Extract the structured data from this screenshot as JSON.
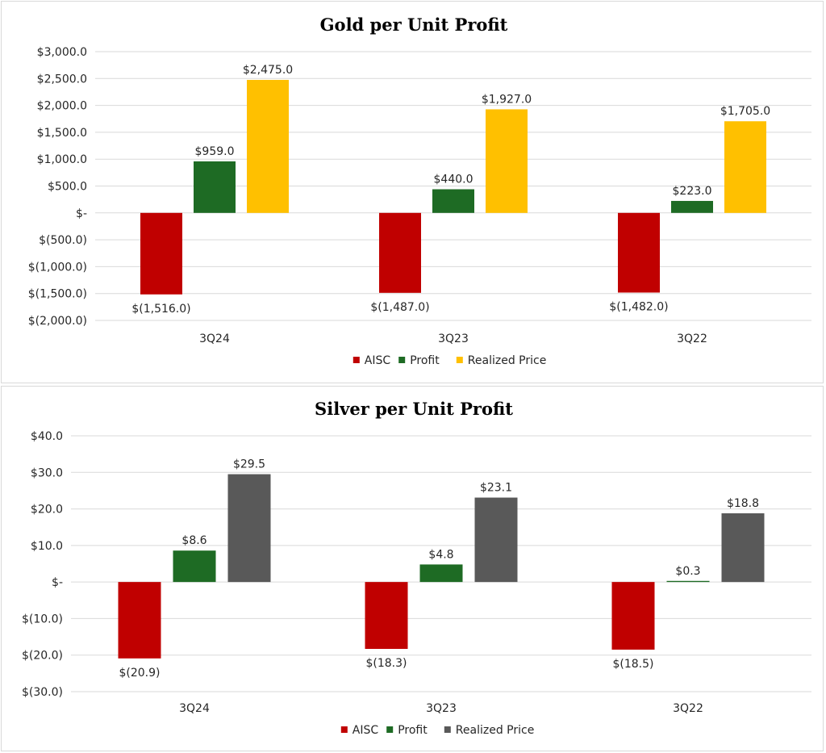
{
  "chart_data": [
    {
      "type": "bar",
      "title": "Gold per Unit Profit",
      "categories": [
        "3Q24",
        "3Q23",
        "3Q22"
      ],
      "series": [
        {
          "name": "AISC",
          "color": "#C00000",
          "values": [
            -1516.0,
            -1487.0,
            -1482.0
          ],
          "labels": [
            "$(1,516.0)",
            "$(1,487.0)",
            "$(1,482.0)"
          ]
        },
        {
          "name": "Profit",
          "color": "#1E6B24",
          "values": [
            959.0,
            440.0,
            223.0
          ],
          "labels": [
            "$959.0",
            "$440.0",
            "$223.0"
          ]
        },
        {
          "name": "Realized Price",
          "color": "#FFC000",
          "values": [
            2475.0,
            1927.0,
            1705.0
          ],
          "labels": [
            "$2,475.0",
            "$1,927.0",
            "$1,705.0"
          ]
        }
      ],
      "yticks": [
        3000,
        2500,
        2000,
        1500,
        1000,
        500,
        0,
        -500,
        -1000,
        -1500,
        -2000
      ],
      "ytick_labels": [
        "$3,000.0",
        "$2,500.0",
        "$2,000.0",
        "$1,500.0",
        "$1,000.0",
        "$500.0",
        "$-",
        "$(500.0)",
        "$(1,000.0)",
        "$(1,500.0)",
        "$(2,000.0)"
      ],
      "ylim": [
        -2000,
        3000
      ],
      "xlabel": "",
      "ylabel": "",
      "grid": true,
      "legend": "bottom"
    },
    {
      "type": "bar",
      "title": "Silver per Unit Profit",
      "categories": [
        "3Q24",
        "3Q23",
        "3Q22"
      ],
      "series": [
        {
          "name": "AISC",
          "color": "#C00000",
          "values": [
            -20.9,
            -18.3,
            -18.5
          ],
          "labels": [
            "$(20.9)",
            "$(18.3)",
            "$(18.5)"
          ]
        },
        {
          "name": "Profit",
          "color": "#1E6B24",
          "values": [
            8.6,
            4.8,
            0.3
          ],
          "labels": [
            "$8.6",
            "$4.8",
            "$0.3"
          ]
        },
        {
          "name": "Realized Price",
          "color": "#595959",
          "values": [
            29.5,
            23.1,
            18.8
          ],
          "labels": [
            "$29.5",
            "$23.1",
            "$18.8"
          ]
        }
      ],
      "yticks": [
        40,
        30,
        20,
        10,
        0,
        -10,
        -20,
        -30
      ],
      "ytick_labels": [
        "$40.0",
        "$30.0",
        "$20.0",
        "$10.0",
        "$-",
        "$(10.0)",
        "$(20.0)",
        "$(30.0)"
      ],
      "ylim": [
        -30,
        40
      ],
      "xlabel": "",
      "ylabel": "",
      "grid": true,
      "legend": "bottom"
    }
  ]
}
